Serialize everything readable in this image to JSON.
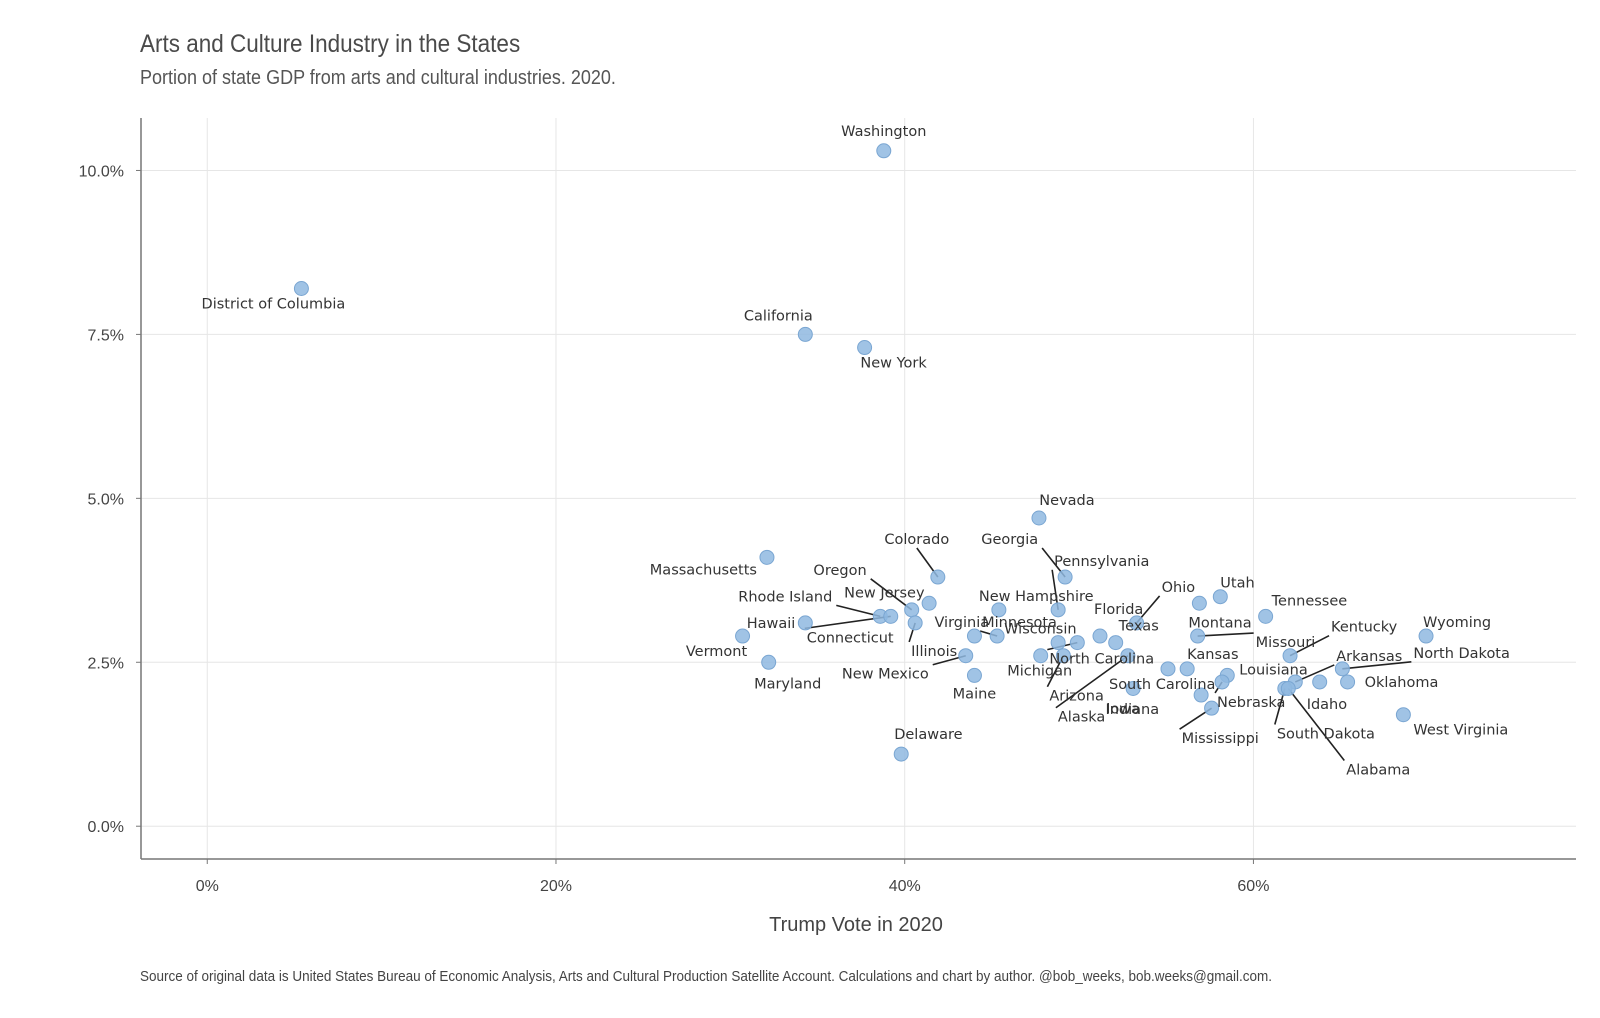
{
  "chart_data": {
    "type": "scatter",
    "title": "Arts and Culture Industry in the States",
    "subtitle": "Portion of state GDP from arts and cultural industries. 2020.",
    "caption": "Source of original data is United States Bureau of Economic Analysis, Arts and Cultural Production Satellite Account. Calculations and chart by author. @bob_weeks, bob.weeks@gmail.com.",
    "xlabel": "Trump Vote in 2020",
    "ylabel": "",
    "xlim": [
      -3.8,
      78.5
    ],
    "ylim": [
      -0.5,
      10.8
    ],
    "x_ticks": [
      0,
      20,
      40,
      60
    ],
    "x_tick_labels": [
      "0%",
      "20%",
      "40%",
      "60%"
    ],
    "y_ticks": [
      0,
      2.5,
      5,
      7.5,
      10
    ],
    "y_tick_labels": [
      "0.0%",
      "2.5%",
      "5.0%",
      "7.5%",
      "10.0%"
    ],
    "grid": true,
    "point_color": "#8fb8e0",
    "text_color": "#333333",
    "points": [
      {
        "name": "Washington",
        "x": 38.8,
        "y": 10.3
      },
      {
        "name": "District of Columbia",
        "x": 5.4,
        "y": 8.2
      },
      {
        "name": "California",
        "x": 34.3,
        "y": 7.5
      },
      {
        "name": "New York",
        "x": 37.7,
        "y": 7.3
      },
      {
        "name": "Nevada",
        "x": 47.7,
        "y": 4.7
      },
      {
        "name": "Massachusetts",
        "x": 32.1,
        "y": 4.1
      },
      {
        "name": "Colorado",
        "x": 41.9,
        "y": 3.8
      },
      {
        "name": "Georgia",
        "x": 49.2,
        "y": 3.8
      },
      {
        "name": "Minnesota",
        "x": 45.3,
        "y": 2.9
      },
      {
        "name": "Oregon",
        "x": 40.4,
        "y": 3.3
      },
      {
        "name": "Pennsylvania",
        "x": 48.8,
        "y": 3.3
      },
      {
        "name": "New Jersey",
        "x": 41.4,
        "y": 3.4
      },
      {
        "name": "New Hampshire",
        "x": 45.4,
        "y": 3.3
      },
      {
        "name": "Rhode Island",
        "x": 38.6,
        "y": 3.2
      },
      {
        "name": "Connecticut",
        "x": 39.2,
        "y": 3.2
      },
      {
        "name": "Hawaii",
        "x": 34.3,
        "y": 3.1
      },
      {
        "name": "Illinois",
        "x": 40.6,
        "y": 3.1
      },
      {
        "name": "Virginia",
        "x": 44.0,
        "y": 2.9
      },
      {
        "name": "Ohio",
        "x": 53.3,
        "y": 3.1
      },
      {
        "name": "Utah",
        "x": 58.1,
        "y": 3.5
      },
      {
        "name": "Montana",
        "x": 56.9,
        "y": 3.4
      },
      {
        "name": "Tennessee",
        "x": 60.7,
        "y": 3.2
      },
      {
        "name": "Florida",
        "x": 51.2,
        "y": 2.9
      },
      {
        "name": "Wisconsin",
        "x": 48.8,
        "y": 2.8
      },
      {
        "name": "Vermont",
        "x": 30.7,
        "y": 2.9
      },
      {
        "name": "Missouri",
        "x": 56.8,
        "y": 2.9
      },
      {
        "name": "Wyoming",
        "x": 69.9,
        "y": 2.9
      },
      {
        "name": "Kentucky",
        "x": 62.1,
        "y": 2.6
      },
      {
        "name": "Texas",
        "x": 52.1,
        "y": 2.8
      },
      {
        "name": "Maryland",
        "x": 32.2,
        "y": 2.5
      },
      {
        "name": "New Mexico",
        "x": 43.5,
        "y": 2.6
      },
      {
        "name": "Michigan",
        "x": 47.8,
        "y": 2.6
      },
      {
        "name": "North Carolina",
        "x": 49.9,
        "y": 2.8
      },
      {
        "name": "Kansas",
        "x": 56.2,
        "y": 2.4
      },
      {
        "name": "Arkansas",
        "x": 62.4,
        "y": 2.2
      },
      {
        "name": "North Dakota",
        "x": 65.1,
        "y": 2.4
      },
      {
        "name": "Oklahoma",
        "x": 65.4,
        "y": 2.2
      },
      {
        "name": "Maine",
        "x": 44.0,
        "y": 2.3
      },
      {
        "name": "Arizona",
        "x": 49.1,
        "y": 2.6
      },
      {
        "name": "Alaska",
        "x": 52.8,
        "y": 2.6
      },
      {
        "name": "Iowa",
        "x": 53.1,
        "y": 2.1
      },
      {
        "name": "South Carolina",
        "x": 55.1,
        "y": 2.4
      },
      {
        "name": "Louisiana",
        "x": 58.5,
        "y": 2.3
      },
      {
        "name": "Nebraska",
        "x": 58.2,
        "y": 2.2
      },
      {
        "name": "Idaho",
        "x": 63.8,
        "y": 2.2
      },
      {
        "name": "Indiana",
        "x": 57.0,
        "y": 2.0
      },
      {
        "name": "Mississippi",
        "x": 57.6,
        "y": 1.8
      },
      {
        "name": "South Dakota",
        "x": 61.8,
        "y": 2.1
      },
      {
        "name": "Alabama",
        "x": 62.0,
        "y": 2.1
      },
      {
        "name": "West Virginia",
        "x": 68.6,
        "y": 1.7
      },
      {
        "name": "Delaware",
        "x": 39.8,
        "y": 1.1
      }
    ]
  }
}
